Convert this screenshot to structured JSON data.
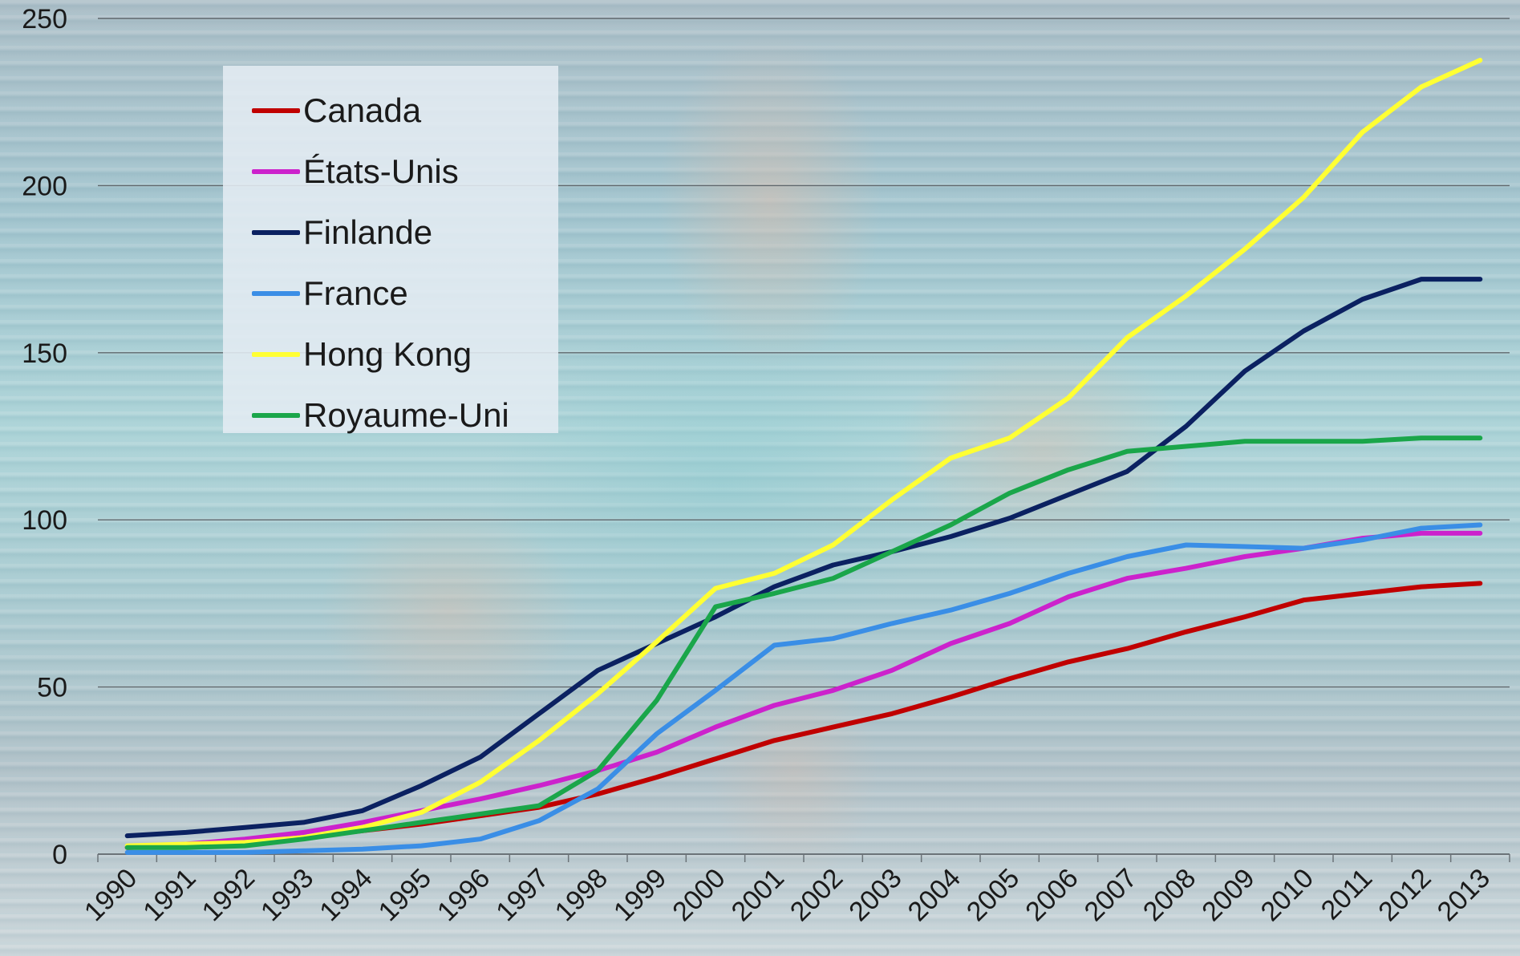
{
  "chart_data": {
    "type": "line",
    "title": "",
    "xlabel": "",
    "ylabel": "",
    "ylim": [
      0,
      250
    ],
    "yticks": [
      0,
      50,
      100,
      150,
      200,
      250
    ],
    "grid": true,
    "legend_position": "top-left",
    "x": [
      "1990",
      "1991",
      "1992",
      "1993",
      "1994",
      "1995",
      "1996",
      "1997",
      "1998",
      "1999",
      "2000",
      "2001",
      "2002",
      "2003",
      "2004",
      "2005",
      "2006",
      "2007",
      "2008",
      "2009",
      "2010",
      "2011",
      "2012",
      "2013"
    ],
    "series": [
      {
        "name": "Canada",
        "color": "#c00000",
        "values": [
          2,
          2.5,
          3.5,
          5,
          7,
          9,
          11.5,
          14,
          18,
          23,
          28.5,
          34,
          38,
          42,
          47,
          52.5,
          57.5,
          61.5,
          66.5,
          71,
          76,
          78,
          80,
          81
        ]
      },
      {
        "name": "États-Unis",
        "color": "#cc22cc",
        "values": [
          2,
          3,
          4.5,
          6.5,
          9.5,
          13,
          16.5,
          20.5,
          25,
          30.5,
          38,
          44.5,
          49,
          55,
          63,
          69,
          77,
          82.5,
          85.5,
          89,
          91.5,
          94.5,
          96,
          96
        ]
      },
      {
        "name": "Finlande",
        "color": "#0b2161",
        "values": [
          5.5,
          6.5,
          8,
          9.5,
          13,
          20.5,
          29,
          42,
          55,
          63,
          71,
          80,
          86.5,
          90.5,
          95,
          100.5,
          107.5,
          114.5,
          128,
          144.5,
          156.5,
          166,
          172,
          172
        ]
      },
      {
        "name": "France",
        "color": "#3a8ee6",
        "values": [
          0.5,
          0.5,
          0.5,
          1,
          1.5,
          2.5,
          4.5,
          10,
          19.5,
          36,
          49,
          62.5,
          64.5,
          69,
          73,
          78,
          84,
          89,
          92.5,
          92,
          91.5,
          94,
          97.5,
          98.5
        ]
      },
      {
        "name": "Hong Kong",
        "color": "#ffff33",
        "values": [
          2.5,
          3,
          3.5,
          5,
          8,
          12.5,
          21.5,
          34,
          48,
          63.5,
          79.5,
          84,
          92.5,
          106,
          118.5,
          124.5,
          136.5,
          154.5,
          167,
          181,
          196.5,
          216,
          229.5,
          237.5
        ]
      },
      {
        "name": "Royaume-Uni",
        "color": "#1aa64a",
        "values": [
          2,
          2,
          2.5,
          4.5,
          7,
          9.5,
          12,
          14.5,
          25,
          46,
          74,
          78,
          82.5,
          90.5,
          98.5,
          108,
          115,
          120.5,
          122,
          123.5,
          123.5,
          123.5,
          124.5,
          124.5
        ]
      }
    ]
  }
}
